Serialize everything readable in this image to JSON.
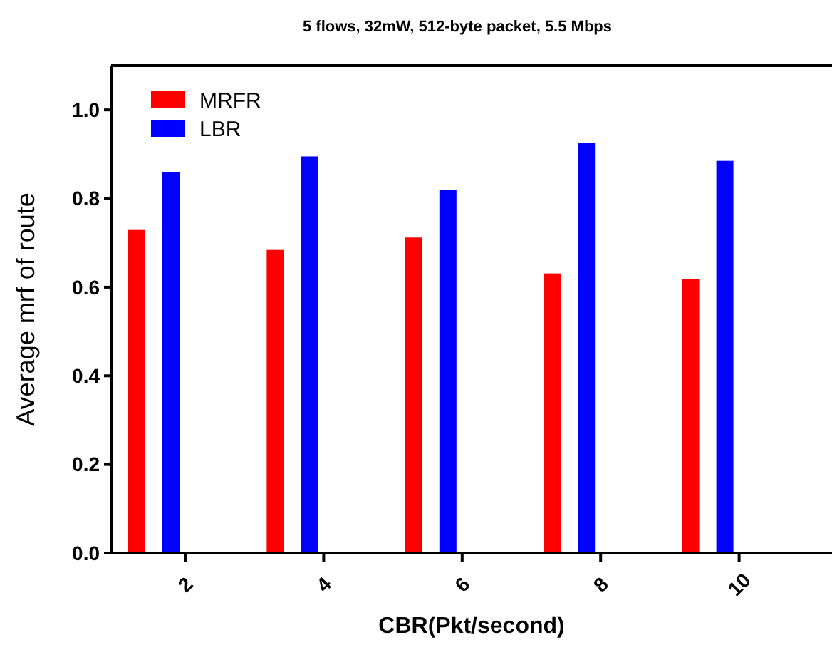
{
  "chart_data": {
    "type": "bar",
    "title": "5 flows, 32mW, 512-byte packet, 5.5 Mbps",
    "xlabel": "CBR(Pkt/second)",
    "ylabel": "Average mrf of route",
    "categories": [
      "2",
      "4",
      "6",
      "8",
      "10"
    ],
    "series": [
      {
        "name": "MRFR",
        "color": "#ff0000",
        "values": [
          0.729,
          0.684,
          0.712,
          0.631,
          0.618
        ]
      },
      {
        "name": "LBR",
        "color": "#0000ff",
        "values": [
          0.86,
          0.895,
          0.819,
          0.925,
          0.885
        ]
      }
    ],
    "ylim": [
      0,
      1.1
    ],
    "yticks": [
      {
        "value": 0,
        "label": "0.0"
      },
      {
        "value": 0.2,
        "label": "0.2"
      },
      {
        "value": 0.4,
        "label": "0.4"
      },
      {
        "value": 0.6,
        "label": "0.6"
      },
      {
        "value": 0.8,
        "label": "0.8"
      },
      {
        "value": 1,
        "label": "1.0"
      }
    ],
    "grid": false,
    "legend": "top left"
  }
}
